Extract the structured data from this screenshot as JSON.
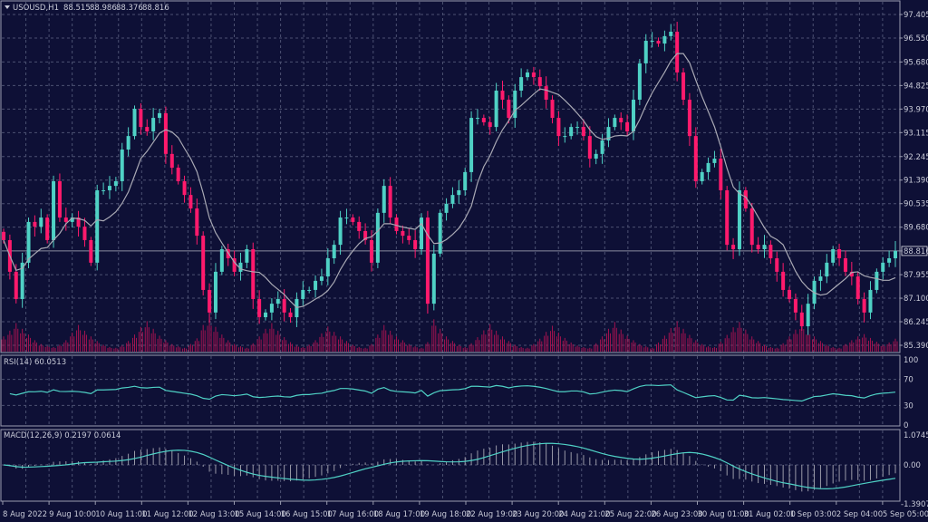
{
  "header": {
    "symbol": "USOUSD,H1",
    "open": "88.515",
    "high": "88.986",
    "low": "88.376",
    "close": "88.816"
  },
  "colors": {
    "background": "#0e1036",
    "bull_candle": "#4fd1c5",
    "bear_candle": "#ff1a6c",
    "volume": "#a3124f",
    "moving_average": "#a9a9b4",
    "rsi_line": "#4fd1c5",
    "macd_histogram": "#9a9aa8",
    "macd_signal": "#4fd1c5",
    "grid": "#4c5172"
  },
  "chart_data": [
    {
      "type": "candlestick",
      "title": "USOUSD,H1",
      "ylim": [
        85.39,
        97.405
      ],
      "price_labels": [
        "97.405",
        "96.550",
        "95.680",
        "94.825",
        "93.970",
        "93.115",
        "92.245",
        "91.390",
        "90.535",
        "89.680",
        "88.816",
        "87.955",
        "87.100",
        "86.245",
        "85.390"
      ],
      "current_price": "88.816",
      "grid": true,
      "closes": [
        89.21,
        88.06,
        87.07,
        88.39,
        89.87,
        89.7,
        90.03,
        89.21,
        91.35,
        90.03,
        89.87,
        90.03,
        89.7,
        89.21,
        88.39,
        91.02,
        91.02,
        91.18,
        91.35,
        92.5,
        92.99,
        93.98,
        93.32,
        93.16,
        93.65,
        93.82,
        92.34,
        91.84,
        91.35,
        90.85,
        90.36,
        89.37,
        87.4,
        86.58,
        88.06,
        88.88,
        88.55,
        88.06,
        88.39,
        88.88,
        87.07,
        86.41,
        86.58,
        86.9,
        87.07,
        86.58,
        86.41,
        87.07,
        87.4,
        87.4,
        87.73,
        87.89,
        88.55,
        89.04,
        90.03,
        90.03,
        89.87,
        89.54,
        89.21,
        88.39,
        90.2,
        91.18,
        90.03,
        89.54,
        89.37,
        89.21,
        88.88,
        90.03,
        86.9,
        88.72,
        90.2,
        90.53,
        90.85,
        91.02,
        91.68,
        93.65,
        93.65,
        93.49,
        93.32,
        94.64,
        94.31,
        93.65,
        94.64,
        95.13,
        95.3,
        95.13,
        94.8,
        94.31,
        93.65,
        92.99,
        92.99,
        93.32,
        93.32,
        92.99,
        92.17,
        92.34,
        92.83,
        93.32,
        93.65,
        93.49,
        93.16,
        94.31,
        95.63,
        96.45,
        96.45,
        96.35,
        96.62,
        96.78,
        95.3,
        94.31,
        92.99,
        91.35,
        91.68,
        92.01,
        92.17,
        91.02,
        89.04,
        88.88,
        91.02,
        90.36,
        89.04,
        88.88,
        89.04,
        88.55,
        88.06,
        87.4,
        87.07,
        86.58,
        86.08,
        86.9,
        87.73,
        87.89,
        88.39,
        88.88,
        88.55,
        88.06,
        87.89,
        87.07,
        86.58,
        87.4,
        88.06,
        88.39,
        88.55,
        88.816
      ],
      "volume": [
        40,
        55,
        75,
        60,
        45,
        30,
        20,
        15,
        12,
        18,
        30,
        50,
        70,
        55,
        40,
        28,
        18,
        12,
        10,
        16,
        28,
        45,
        65,
        80,
        60,
        42,
        30,
        20,
        14,
        10,
        20,
        35,
        70,
        85,
        65,
        45,
        30,
        20,
        14,
        10,
        22,
        40,
        60,
        75,
        55,
        38,
        25,
        16,
        12,
        18,
        30,
        48,
        66,
        52,
        40,
        28,
        18,
        12,
        10,
        20,
        45,
        70,
        55,
        40,
        30,
        20,
        14,
        10,
        25,
        85,
        60,
        40,
        28,
        18,
        12,
        22,
        38,
        56,
        72,
        55,
        40,
        28,
        18,
        12,
        10,
        20,
        34,
        52,
        68,
        50,
        36,
        24,
        16,
        12,
        10,
        22,
        40,
        60,
        78,
        58,
        42,
        30,
        20,
        14,
        10,
        24,
        42,
        62,
        80,
        60,
        44,
        30,
        20,
        14,
        12,
        26,
        44,
        64,
        78,
        58,
        40,
        28,
        18,
        12,
        10,
        22,
        40,
        58,
        74,
        56,
        40,
        28,
        18,
        12,
        10,
        20,
        30,
        40,
        46,
        36,
        26,
        18,
        24,
        34
      ]
    },
    {
      "type": "line",
      "title": "RSI(14) 60.0513",
      "ylim": [
        0,
        100
      ],
      "level_labels": [
        "100",
        "70",
        "30",
        "0"
      ]
    },
    {
      "type": "bar+line",
      "title": "MACD(12,26,9) 0.2197 0.0614",
      "ylim": [
        -1.3907,
        1.0745
      ],
      "level_labels": [
        "1.0745",
        "0.00",
        "-1.3907"
      ]
    }
  ],
  "time_axis": [
    "8 Aug 2022",
    "9 Aug 10:00",
    "10 Aug 11:00",
    "11 Aug 12:00",
    "12 Aug 13:00",
    "15 Aug 14:00",
    "16 Aug 15:00",
    "17 Aug 16:00",
    "18 Aug 17:00",
    "19 Aug 18:00",
    "22 Aug 19:00",
    "23 Aug 20:00",
    "24 Aug 21:00",
    "25 Aug 22:00",
    "26 Aug 23:00",
    "30 Aug 01:00",
    "31 Aug 02:00",
    "1 Sep 03:00",
    "2 Sep 04:00",
    "5 Sep 05:00"
  ]
}
